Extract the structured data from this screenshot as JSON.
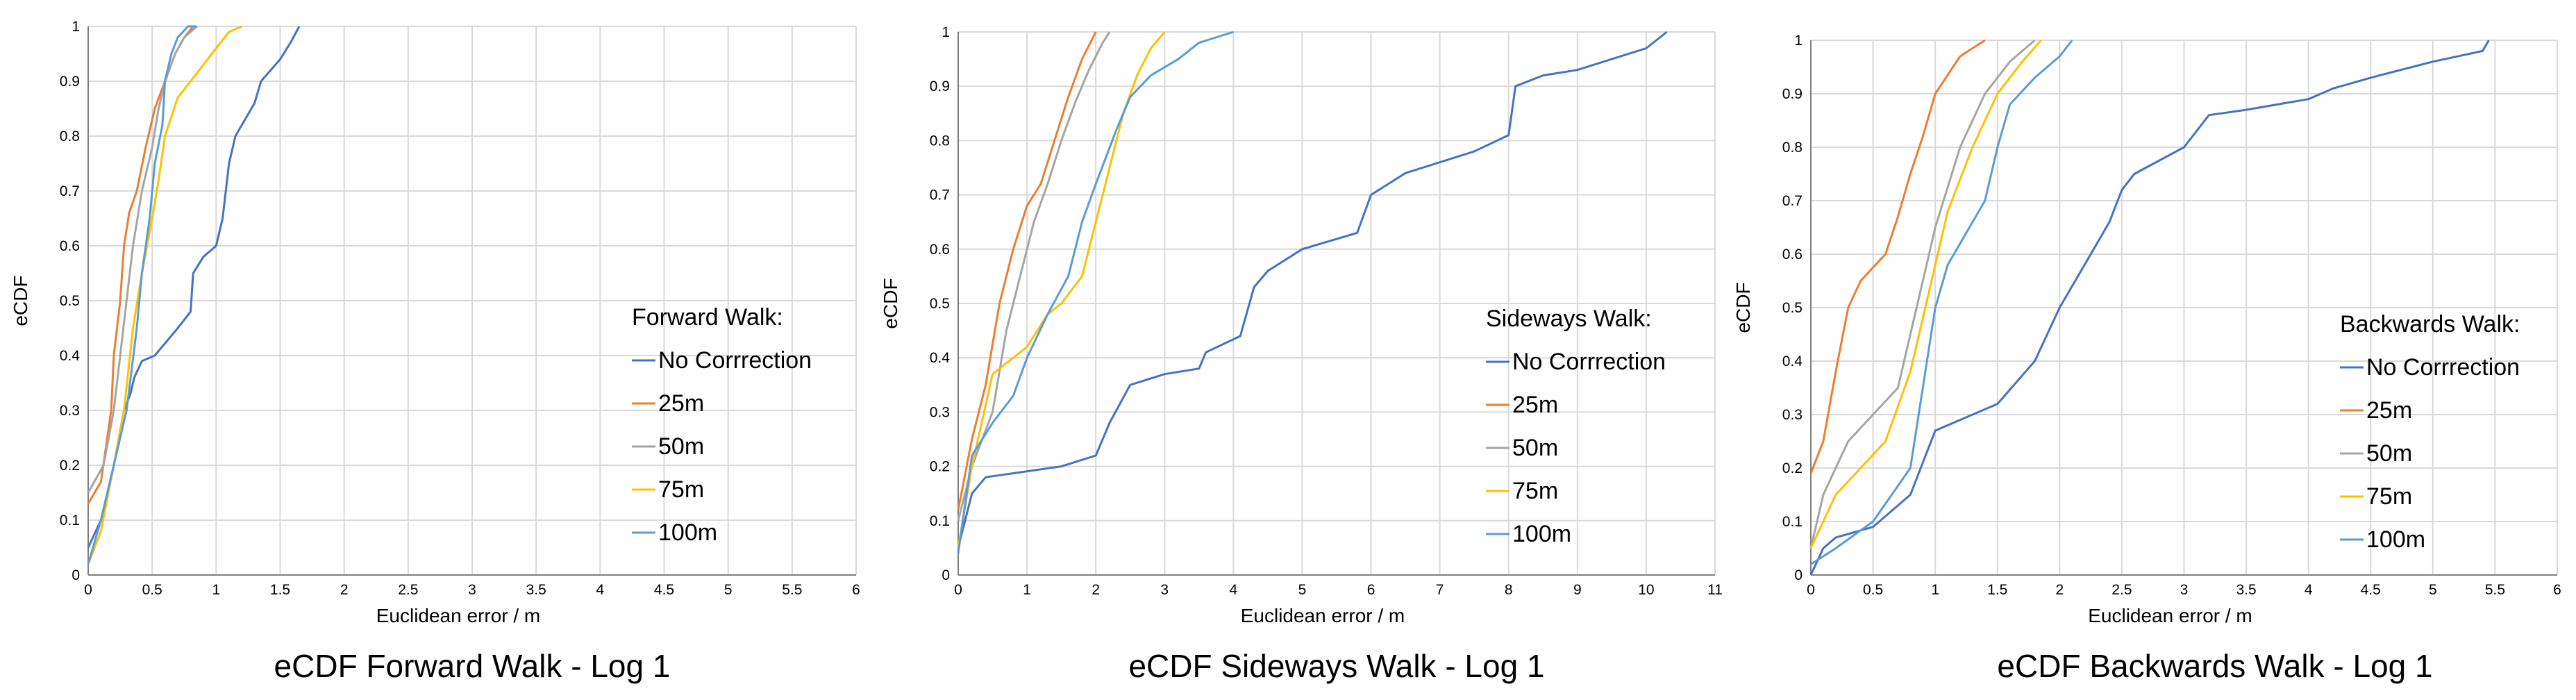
{
  "chart_data": [
    {
      "type": "line",
      "title": "eCDF Forward Walk - Log 1",
      "xlabel": "Euclidean error / m",
      "ylabel": "eCDF",
      "xlim": [
        0,
        6
      ],
      "ylim": [
        0,
        1
      ],
      "x_ticks": [
        0,
        0.5,
        1,
        1.5,
        2,
        2.5,
        3,
        3.5,
        4,
        4.5,
        5,
        5.5,
        6
      ],
      "x_tick_labels": [
        "0",
        "0.5",
        "1",
        "1.5",
        "2",
        "2.5",
        "3",
        "3.5",
        "4",
        "4.5",
        "5",
        "5.5",
        "6"
      ],
      "y_ticks": [
        0,
        0.1,
        0.2,
        0.3,
        0.4,
        0.5,
        0.6,
        0.7,
        0.8,
        0.9,
        1
      ],
      "y_tick_labels": [
        "0",
        "0.1",
        "0.2",
        "0.3",
        "0.4",
        "0.5",
        "0.6",
        "0.7",
        "0.8",
        "0.9",
        "1"
      ],
      "grid": true,
      "legend": {
        "title": "Forward Walk:",
        "position": "lower-right"
      },
      "series": [
        {
          "name": "No Corrrection",
          "color": "#4472c4",
          "x": [
            0,
            0.1,
            0.2,
            0.28,
            0.33,
            0.36,
            0.42,
            0.52,
            0.7,
            0.8,
            0.82,
            0.9,
            1.0,
            1.05,
            1.1,
            1.15,
            1.3,
            1.35,
            1.5,
            1.58,
            1.65
          ],
          "y": [
            0.05,
            0.1,
            0.2,
            0.3,
            0.33,
            0.36,
            0.39,
            0.4,
            0.45,
            0.48,
            0.55,
            0.58,
            0.6,
            0.65,
            0.75,
            0.8,
            0.86,
            0.9,
            0.94,
            0.97,
            1.0
          ]
        },
        {
          "name": "25m",
          "color": "#ed7d31",
          "x": [
            0,
            0.1,
            0.18,
            0.2,
            0.25,
            0.28,
            0.32,
            0.38,
            0.45,
            0.52,
            0.6,
            0.68,
            0.75,
            0.82
          ],
          "y": [
            0.13,
            0.17,
            0.3,
            0.4,
            0.5,
            0.6,
            0.66,
            0.7,
            0.78,
            0.85,
            0.9,
            0.95,
            0.98,
            1.0
          ]
        },
        {
          "name": "50m",
          "color": "#a5a5a5",
          "x": [
            0,
            0.12,
            0.2,
            0.25,
            0.3,
            0.35,
            0.42,
            0.5,
            0.55,
            0.6,
            0.68,
            0.75,
            0.85
          ],
          "y": [
            0.15,
            0.2,
            0.3,
            0.4,
            0.5,
            0.6,
            0.7,
            0.78,
            0.85,
            0.9,
            0.95,
            0.98,
            1.0
          ]
        },
        {
          "name": "75m",
          "color": "#ffc000",
          "x": [
            0,
            0.1,
            0.2,
            0.28,
            0.35,
            0.42,
            0.5,
            0.55,
            0.6,
            0.7,
            0.8,
            0.9,
            1.0,
            1.1,
            1.2
          ],
          "y": [
            0.02,
            0.08,
            0.2,
            0.3,
            0.45,
            0.55,
            0.65,
            0.72,
            0.8,
            0.87,
            0.9,
            0.93,
            0.96,
            0.99,
            1.0
          ]
        },
        {
          "name": "100m",
          "color": "#5b9bd5",
          "x": [
            0,
            0.1,
            0.2,
            0.3,
            0.38,
            0.42,
            0.48,
            0.52,
            0.58,
            0.6,
            0.65,
            0.7,
            0.78,
            0.85
          ],
          "y": [
            0.02,
            0.1,
            0.2,
            0.3,
            0.45,
            0.55,
            0.65,
            0.75,
            0.82,
            0.9,
            0.95,
            0.98,
            1.0,
            1.0
          ]
        }
      ]
    },
    {
      "type": "line",
      "title": "eCDF Sideways Walk - Log 1",
      "xlabel": "Euclidean error / m",
      "ylabel": "eCDF",
      "xlim": [
        0,
        11
      ],
      "ylim": [
        0,
        1
      ],
      "x_ticks": [
        0,
        1,
        2,
        3,
        4,
        5,
        6,
        7,
        8,
        9,
        10,
        11
      ],
      "x_tick_labels": [
        "0",
        "1",
        "2",
        "3",
        "4",
        "5",
        "6",
        "7",
        "8",
        "9",
        "10",
        "11"
      ],
      "y_ticks": [
        0,
        0.1,
        0.2,
        0.3,
        0.4,
        0.5,
        0.6,
        0.7,
        0.8,
        0.9,
        1
      ],
      "y_tick_labels": [
        "0",
        "0.1",
        "0.2",
        "0.3",
        "0.4",
        "0.5",
        "0.6",
        "0.7",
        "0.8",
        "0.9",
        "1"
      ],
      "grid": true,
      "legend": {
        "title": "Sideways Walk:",
        "position": "lower-right"
      },
      "series": [
        {
          "name": "No Corrrection",
          "color": "#4472c4",
          "x": [
            0,
            0.2,
            0.4,
            1.5,
            2.0,
            2.2,
            2.5,
            3.0,
            3.5,
            3.6,
            4.1,
            4.3,
            4.5,
            5.0,
            5.8,
            6.0,
            6.5,
            7.5,
            8.0,
            8.1,
            8.5,
            9.0,
            9.5,
            10.0,
            10.3
          ],
          "y": [
            0.05,
            0.15,
            0.18,
            0.2,
            0.22,
            0.28,
            0.35,
            0.37,
            0.38,
            0.41,
            0.44,
            0.53,
            0.56,
            0.6,
            0.63,
            0.7,
            0.74,
            0.78,
            0.81,
            0.9,
            0.92,
            0.93,
            0.95,
            0.97,
            1.0
          ]
        },
        {
          "name": "25m",
          "color": "#ed7d31",
          "x": [
            0,
            0.2,
            0.4,
            0.6,
            0.8,
            1.0,
            1.2,
            1.4,
            1.6,
            1.8,
            2.0
          ],
          "y": [
            0.12,
            0.25,
            0.35,
            0.5,
            0.6,
            0.68,
            0.72,
            0.8,
            0.88,
            0.95,
            1.0
          ]
        },
        {
          "name": "50m",
          "color": "#a5a5a5",
          "x": [
            0,
            0.2,
            0.5,
            0.7,
            0.9,
            1.1,
            1.3,
            1.5,
            1.7,
            1.9,
            2.1,
            2.2
          ],
          "y": [
            0.1,
            0.2,
            0.3,
            0.45,
            0.55,
            0.65,
            0.72,
            0.8,
            0.87,
            0.93,
            0.98,
            1.0
          ]
        },
        {
          "name": "75m",
          "color": "#ffc000",
          "x": [
            0,
            0.2,
            0.5,
            1.0,
            1.3,
            1.5,
            1.8,
            2.0,
            2.2,
            2.4,
            2.6,
            2.8,
            3.0
          ],
          "y": [
            0.05,
            0.2,
            0.37,
            0.42,
            0.48,
            0.5,
            0.55,
            0.65,
            0.75,
            0.85,
            0.92,
            0.97,
            1.0
          ]
        },
        {
          "name": "100m",
          "color": "#5b9bd5",
          "x": [
            0,
            0.2,
            0.5,
            0.8,
            1.0,
            1.3,
            1.6,
            1.8,
            2.0,
            2.3,
            2.5,
            2.8,
            3.2,
            3.5,
            4.0
          ],
          "y": [
            0.04,
            0.22,
            0.28,
            0.33,
            0.4,
            0.48,
            0.55,
            0.65,
            0.72,
            0.82,
            0.88,
            0.92,
            0.95,
            0.98,
            1.0
          ]
        }
      ]
    },
    {
      "type": "line",
      "title": "eCDF Backwards Walk - Log 1",
      "xlabel": "Euclidean error / m",
      "ylabel": "eCDF",
      "xlim": [
        0,
        6
      ],
      "ylim": [
        0,
        1
      ],
      "x_ticks": [
        0,
        0.5,
        1,
        1.5,
        2,
        2.5,
        3,
        3.5,
        4,
        4.5,
        5,
        5.5,
        6
      ],
      "x_tick_labels": [
        "0",
        "0.5",
        "1",
        "1.5",
        "2",
        "2.5",
        "3",
        "3.5",
        "4",
        "4.5",
        "5",
        "5.5",
        "6"
      ],
      "y_ticks": [
        0,
        0.1,
        0.2,
        0.3,
        0.4,
        0.5,
        0.6,
        0.7,
        0.8,
        0.9,
        1
      ],
      "y_tick_labels": [
        "0",
        "0.1",
        "0.2",
        "0.3",
        "0.4",
        "0.5",
        "0.6",
        "0.7",
        "0.8",
        "0.9",
        "1"
      ],
      "grid": true,
      "legend": {
        "title": "Backwards Walk:",
        "position": "lower-right"
      },
      "series": [
        {
          "name": "No Corrrection",
          "color": "#4472c4",
          "x": [
            0,
            0.1,
            0.2,
            0.5,
            0.8,
            1.0,
            1.5,
            1.8,
            2.0,
            2.2,
            2.4,
            2.5,
            2.6,
            3.0,
            3.2,
            3.5,
            4.0,
            4.2,
            4.5,
            5.0,
            5.4,
            5.45
          ],
          "y": [
            0.0,
            0.05,
            0.07,
            0.09,
            0.15,
            0.27,
            0.32,
            0.4,
            0.5,
            0.58,
            0.66,
            0.72,
            0.75,
            0.8,
            0.86,
            0.87,
            0.89,
            0.91,
            0.93,
            0.96,
            0.98,
            1.0
          ]
        },
        {
          "name": "25m",
          "color": "#ed7d31",
          "x": [
            0,
            0.1,
            0.2,
            0.3,
            0.4,
            0.6,
            0.7,
            0.8,
            0.9,
            1.0,
            1.2,
            1.4
          ],
          "y": [
            0.19,
            0.25,
            0.38,
            0.5,
            0.55,
            0.6,
            0.67,
            0.75,
            0.82,
            0.9,
            0.97,
            1.0
          ]
        },
        {
          "name": "50m",
          "color": "#a5a5a5",
          "x": [
            0,
            0.1,
            0.2,
            0.3,
            0.5,
            0.7,
            0.8,
            0.9,
            1.0,
            1.2,
            1.4,
            1.6,
            1.8
          ],
          "y": [
            0.05,
            0.15,
            0.2,
            0.25,
            0.3,
            0.35,
            0.45,
            0.55,
            0.65,
            0.8,
            0.9,
            0.96,
            1.0
          ]
        },
        {
          "name": "75m",
          "color": "#ffc000",
          "x": [
            0,
            0.1,
            0.2,
            0.4,
            0.6,
            0.8,
            0.9,
            1.0,
            1.1,
            1.3,
            1.5,
            1.7,
            1.85
          ],
          "y": [
            0.05,
            0.1,
            0.15,
            0.2,
            0.25,
            0.38,
            0.48,
            0.58,
            0.68,
            0.8,
            0.9,
            0.96,
            1.0
          ]
        },
        {
          "name": "100m",
          "color": "#5b9bd5",
          "x": [
            0,
            0.2,
            0.5,
            0.8,
            0.9,
            1.0,
            1.1,
            1.2,
            1.4,
            1.5,
            1.6,
            1.8,
            2.0,
            2.1
          ],
          "y": [
            0.02,
            0.05,
            0.1,
            0.2,
            0.35,
            0.5,
            0.58,
            0.62,
            0.7,
            0.8,
            0.88,
            0.93,
            0.97,
            1.0
          ]
        }
      ]
    }
  ]
}
